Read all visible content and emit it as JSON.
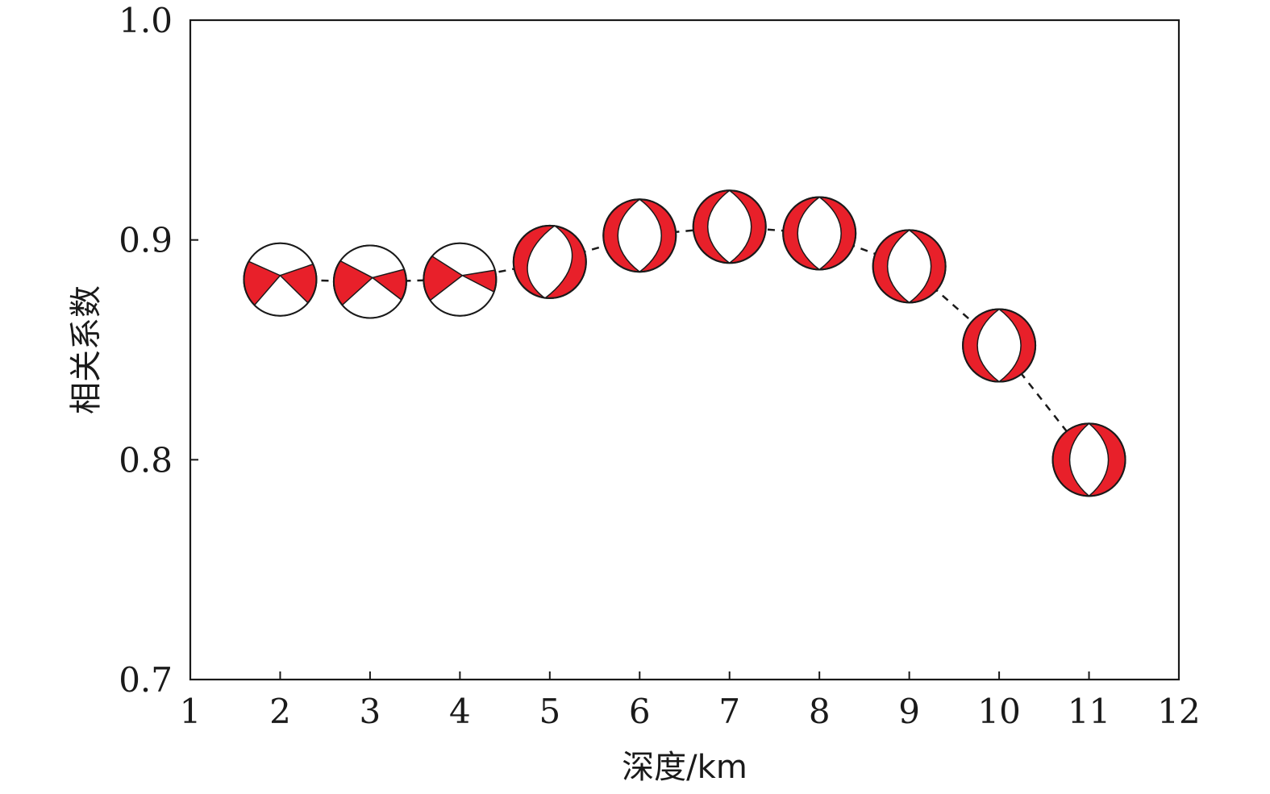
{
  "chart_data": {
    "type": "scatter",
    "xlabel": "深度/km",
    "ylabel": "相关系数",
    "xlim": [
      1,
      12
    ],
    "ylim": [
      0.7,
      1.0
    ],
    "xticks": [
      "1",
      "2",
      "3",
      "4",
      "5",
      "6",
      "7",
      "8",
      "9",
      "10",
      "11",
      "12"
    ],
    "yticks": [
      "0.7",
      "0.8",
      "0.9",
      "1.0"
    ],
    "grid": false,
    "marker": "focal-mechanism-beachball",
    "colors": {
      "compression": "#e8202a",
      "dilatation": "#ffffff",
      "outline": "#1a1a1a",
      "line": "#1a1a1a"
    },
    "x": [
      2,
      3,
      4,
      5,
      6,
      7,
      8,
      9,
      10,
      11
    ],
    "y": [
      0.882,
      0.881,
      0.882,
      0.89,
      0.902,
      0.906,
      0.903,
      0.888,
      0.852,
      0.8
    ]
  }
}
